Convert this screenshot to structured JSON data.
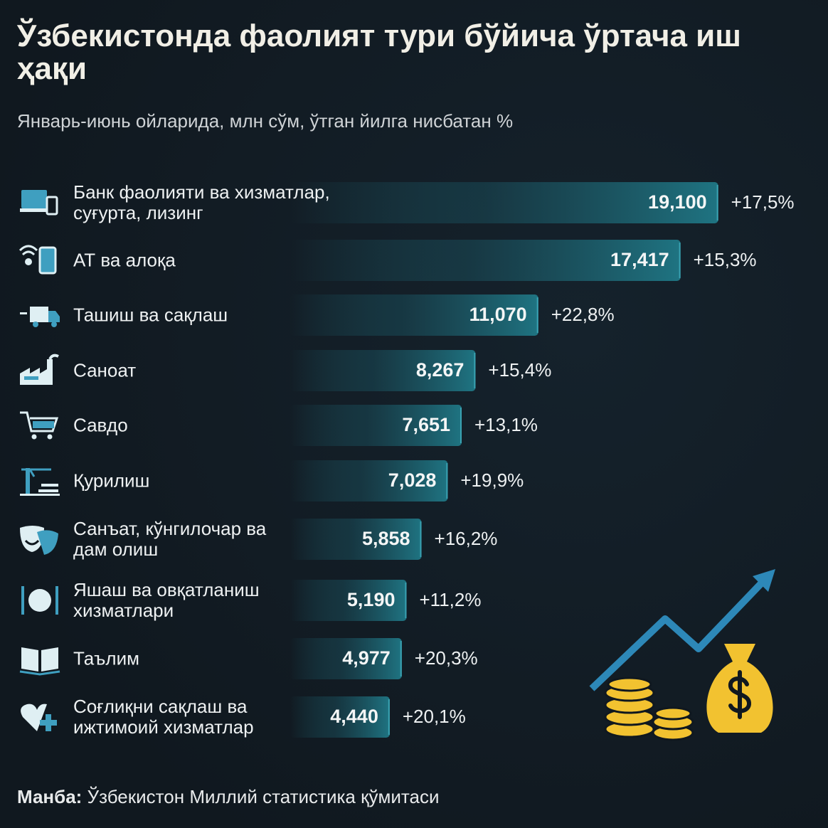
{
  "title": "Ўзбекистонда фаолият тури бўйича ўртача иш ҳақи",
  "subtitle": "Январь-июнь ойларида, млн сўм, ўтган йилга нисбатан %",
  "chart_data": {
    "type": "bar",
    "orientation": "horizontal",
    "color": "#1f7482",
    "categories": [
      "Банк фаолияти ва хизматлар, суғурта, лизинг",
      "АТ ва алоқа",
      "Ташиш ва сақлаш",
      "Саноат",
      "Савдо",
      "Қурилиш",
      "Санъат, кўнгилочар ва дам олиш",
      "Яшаш ва овқатланиш хизматлари",
      "Таълим",
      "Соғлиқни сақлаш ва ижтимоий хизматлар"
    ],
    "values": [
      19.1,
      17.417,
      11.07,
      8.267,
      7.651,
      7.028,
      5.858,
      5.19,
      4.977,
      4.44
    ],
    "value_labels": [
      "19,100",
      "17,417",
      "11,070",
      "8,267",
      "7,651",
      "7,028",
      "5,858",
      "5,190",
      "4,977",
      "4,440"
    ],
    "growth": [
      17.5,
      15.3,
      22.8,
      15.4,
      13.1,
      19.9,
      16.2,
      11.2,
      20.3,
      20.1
    ],
    "growth_labels": [
      "+17,5%",
      "+15,3%",
      "+22,8%",
      "+15,4%",
      "+13,1%",
      "+19,9%",
      "+16,2%",
      "+11,2%",
      "+20,3%",
      "+20,1%"
    ]
  },
  "source_label": "Манба:",
  "source_text": "Ўзбекистон Миллий статистика қўмитаси"
}
